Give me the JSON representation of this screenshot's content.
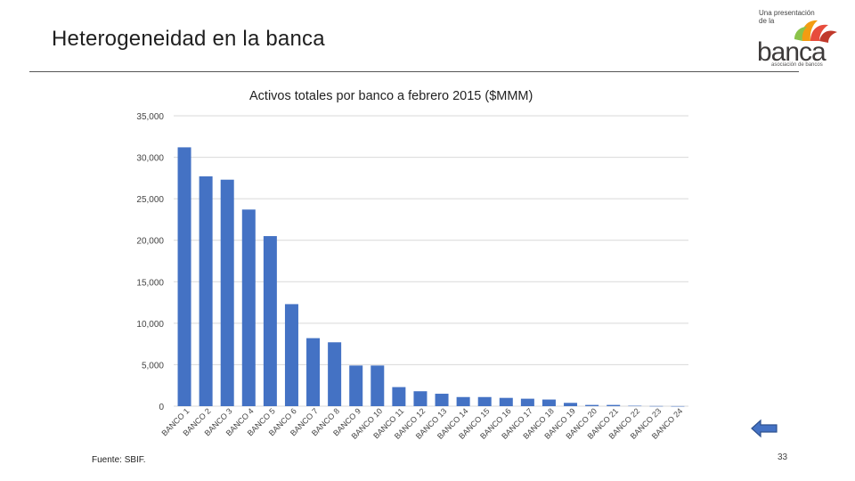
{
  "slide": {
    "title": "Heterogeneidad en la banca",
    "source": "Fuente: SBIF.",
    "page_number": "33"
  },
  "logo": {
    "tagline_line1": "Una presentación",
    "tagline_line2": "de la",
    "wordmark": "banca",
    "subtitle": "asociación de bancos"
  },
  "colors": {
    "bar": "#4472c4",
    "grid": "#d9d9d9",
    "arrow_fill": "#4472c4",
    "arrow_stroke": "#2f528f"
  },
  "chart_data": {
    "type": "bar",
    "title": "Activos totales por banco a febrero 2015 ($MMM)",
    "xlabel": "",
    "ylabel": "",
    "ylim": [
      0,
      35000
    ],
    "yticks": [
      0,
      5000,
      10000,
      15000,
      20000,
      25000,
      30000,
      35000
    ],
    "ytick_labels": [
      "0",
      "5,000",
      "10,000",
      "15,000",
      "20,000",
      "25,000",
      "30,000",
      "35,000"
    ],
    "grid": true,
    "legend": "none",
    "categories": [
      "BANCO 1",
      "BANCO 2",
      "BANCO 3",
      "BANCO 4",
      "BANCO 5",
      "BANCO 6",
      "BANCO 7",
      "BANCO 8",
      "BANCO 9",
      "BANCO 10",
      "BANCO 11",
      "BANCO 12",
      "BANCO 13",
      "BANCO 14",
      "BANCO 15",
      "BANCO 16",
      "BANCO 17",
      "BANCO 18",
      "BANCO 19",
      "BANCO 20",
      "BANCO 21",
      "BANCO 22",
      "BANCO 23",
      "BANCO 24"
    ],
    "values": [
      31200,
      27700,
      27300,
      23700,
      20500,
      12300,
      8200,
      7700,
      4900,
      4900,
      2300,
      1800,
      1500,
      1100,
      1100,
      1000,
      900,
      800,
      400,
      150,
      150,
      50,
      20,
      10
    ]
  }
}
